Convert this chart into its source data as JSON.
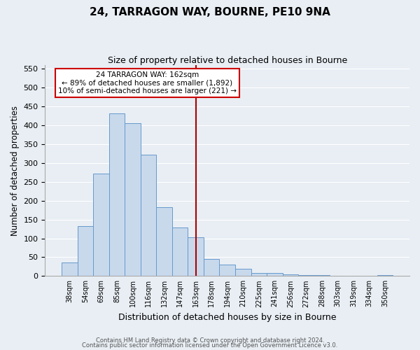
{
  "title": "24, TARRAGON WAY, BOURNE, PE10 9NA",
  "subtitle": "Size of property relative to detached houses in Bourne",
  "xlabel": "Distribution of detached houses by size in Bourne",
  "ylabel": "Number of detached properties",
  "bar_labels": [
    "38sqm",
    "54sqm",
    "69sqm",
    "85sqm",
    "100sqm",
    "116sqm",
    "132sqm",
    "147sqm",
    "163sqm",
    "178sqm",
    "194sqm",
    "210sqm",
    "225sqm",
    "241sqm",
    "256sqm",
    "272sqm",
    "288sqm",
    "303sqm",
    "319sqm",
    "334sqm",
    "350sqm"
  ],
  "bar_values": [
    35,
    133,
    272,
    432,
    405,
    322,
    183,
    128,
    103,
    46,
    30,
    20,
    8,
    8,
    5,
    3,
    2,
    1,
    1,
    1,
    2
  ],
  "bar_color": "#c8d9ec",
  "bar_edge_color": "#6699cc",
  "vline_color": "#aa0000",
  "ylim": [
    0,
    560
  ],
  "yticks": [
    0,
    50,
    100,
    150,
    200,
    250,
    300,
    350,
    400,
    450,
    500,
    550
  ],
  "annotation_title": "24 TARRAGON WAY: 162sqm",
  "annotation_line1": "← 89% of detached houses are smaller (1,892)",
  "annotation_line2": "10% of semi-detached houses are larger (221) →",
  "annotation_box_color": "#ffffff",
  "annotation_box_edge": "#cc0000",
  "footer1": "Contains HM Land Registry data © Crown copyright and database right 2024.",
  "footer2": "Contains public sector information licensed under the Open Government Licence v3.0.",
  "background_color": "#e8eef4",
  "grid_color": "#ffffff"
}
